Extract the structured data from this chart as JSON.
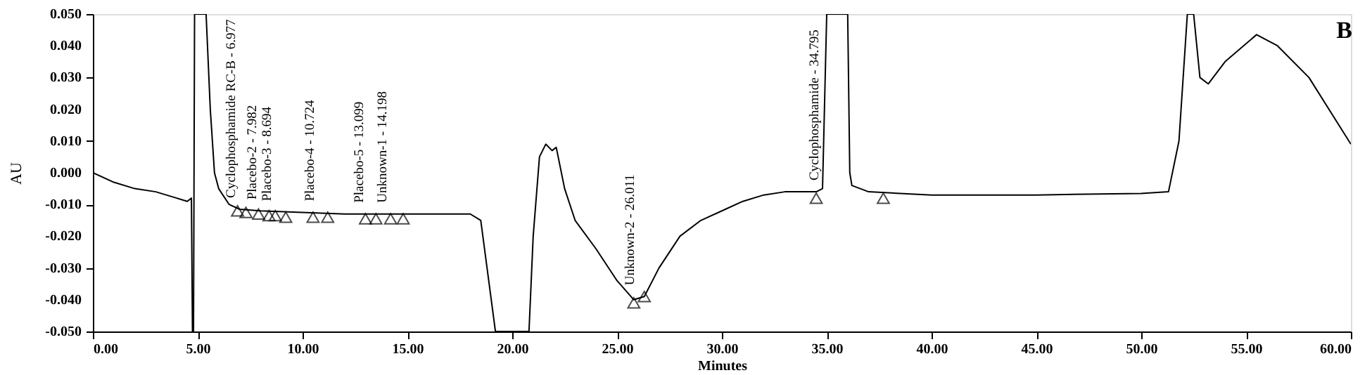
{
  "chart_data": {
    "type": "line",
    "xlabel": "Minutes",
    "ylabel": "AU",
    "xlim": [
      0,
      60
    ],
    "ylim": [
      -0.05,
      0.05
    ],
    "xticks": [
      {
        "value": 0,
        "label": "0.00"
      },
      {
        "value": 5,
        "label": "5.00"
      },
      {
        "value": 10,
        "label": "10.00"
      },
      {
        "value": 15,
        "label": "15.00"
      },
      {
        "value": 20,
        "label": "20.00"
      },
      {
        "value": 25,
        "label": "25.00"
      },
      {
        "value": 30,
        "label": "30.00"
      },
      {
        "value": 35,
        "label": "35.00"
      },
      {
        "value": 40,
        "label": "40.00"
      },
      {
        "value": 45,
        "label": "45.00"
      },
      {
        "value": 50,
        "label": "50.00"
      },
      {
        "value": 55,
        "label": "55.00"
      },
      {
        "value": 60,
        "label": "60.00"
      }
    ],
    "yticks": [
      {
        "value": -0.05,
        "label": "-0.050"
      },
      {
        "value": -0.04,
        "label": "-0.040"
      },
      {
        "value": -0.03,
        "label": "-0.030"
      },
      {
        "value": -0.02,
        "label": "-0.020"
      },
      {
        "value": -0.01,
        "label": "-0.010"
      },
      {
        "value": 0,
        "label": "0.000"
      },
      {
        "value": 0.01,
        "label": "0.010"
      },
      {
        "value": 0.02,
        "label": "0.020"
      },
      {
        "value": 0.03,
        "label": "0.030"
      },
      {
        "value": 0.04,
        "label": "0.040"
      },
      {
        "value": 0.05,
        "label": "0.050"
      }
    ],
    "grid": false,
    "series": [
      {
        "color": "#000000",
        "x": [
          0,
          1,
          2,
          3,
          3.5,
          4,
          4.5,
          4.7,
          4.75,
          4.8,
          4.85,
          5.0,
          5.4,
          5.6,
          5.8,
          6.0,
          6.5,
          7,
          8,
          10,
          12,
          15,
          18,
          18.5,
          18.8,
          19.2,
          20.8,
          21.0,
          21.3,
          21.6,
          21.9,
          22.1,
          22.5,
          23,
          24,
          25,
          25.8,
          26.3,
          27,
          28,
          29,
          30,
          31,
          32,
          33,
          34.5,
          34.8,
          35.0,
          36.0,
          36.1,
          36.2,
          37,
          40,
          45,
          50,
          51.3,
          51.8,
          52.2,
          52.5,
          52.8,
          53.2,
          54,
          55.5,
          56.5,
          58,
          60
        ],
        "values": [
          0.0,
          -0.003,
          -0.005,
          -0.006,
          -0.007,
          -0.008,
          -0.009,
          -0.008,
          -0.05,
          -0.05,
          0.05,
          0.05,
          0.05,
          0.02,
          0.0,
          -0.005,
          -0.01,
          -0.0115,
          -0.012,
          -0.0125,
          -0.013,
          -0.013,
          -0.013,
          -0.015,
          -0.03,
          -0.05,
          -0.05,
          -0.02,
          0.005,
          0.009,
          0.007,
          0.008,
          -0.005,
          -0.015,
          -0.024,
          -0.034,
          -0.04,
          -0.039,
          -0.03,
          -0.02,
          -0.015,
          -0.012,
          -0.009,
          -0.007,
          -0.006,
          -0.006,
          -0.005,
          0.05,
          0.05,
          0.0,
          -0.004,
          -0.006,
          -0.007,
          -0.007,
          -0.0065,
          -0.006,
          0.01,
          0.05,
          0.05,
          0.03,
          0.028,
          0.035,
          0.0435,
          0.04,
          0.03,
          0.009
        ]
      },
      {
        "type": "scatter",
        "marker": "triangle",
        "color": "#000000",
        "x": [
          6.9,
          7.3,
          7.9,
          8.4,
          8.7,
          9.2,
          10.5,
          11.2,
          13.0,
          13.5,
          14.2,
          14.8,
          25.8,
          26.3,
          34.5,
          37.7
        ],
        "values": [
          -0.012,
          -0.0125,
          -0.013,
          -0.0135,
          -0.0135,
          -0.014,
          -0.014,
          -0.014,
          -0.0145,
          -0.0145,
          -0.0145,
          -0.0145,
          -0.041,
          -0.039,
          -0.008,
          -0.008
        ]
      }
    ],
    "annotations": [
      {
        "text": "Cyclophosphamide RC-B - 6.977",
        "x": 6.977,
        "y": -0.0115
      },
      {
        "text": "Placebo-2 - 7.982",
        "x": 7.982,
        "y": -0.012
      },
      {
        "text": "Placebo-3 - 8.694",
        "x": 8.694,
        "y": -0.0125
      },
      {
        "text": "Placebo-4 - 10.724",
        "x": 10.724,
        "y": -0.0125
      },
      {
        "text": "Placebo-5 - 13.099",
        "x": 13.099,
        "y": -0.013
      },
      {
        "text": "Unknown-1 - 14.198",
        "x": 14.198,
        "y": -0.013
      },
      {
        "text": "Unknown-2 - 26.011",
        "x": 26.011,
        "y": -0.039
      },
      {
        "text": "Cyclophosphamide - 34.795",
        "x": 34.795,
        "y": -0.006
      },
      "B"
    ]
  }
}
